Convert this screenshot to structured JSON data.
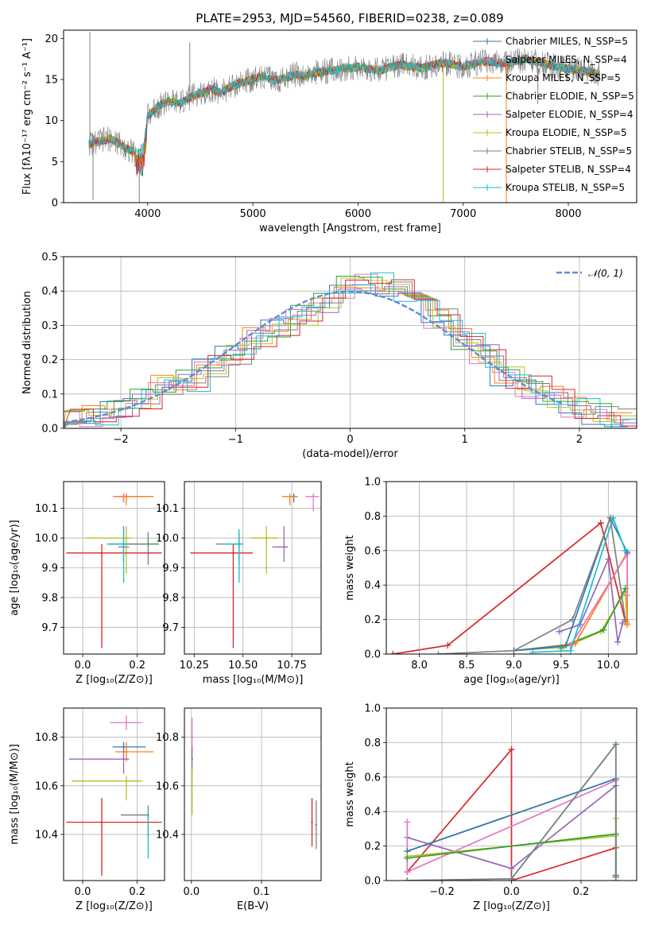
{
  "figure_title": "PLATE=2953, MJD=54560, FIBERID=0238, z=0.089",
  "colors": {
    "Chabrier MILES": "#2b7bba",
    "Salpeter MILES": "#e377c2",
    "Kroupa MILES": "#ff7f0e",
    "Chabrier ELODIE": "#2ca02c",
    "Salpeter ELODIE": "#9467bd",
    "Kroupa ELODIE": "#bcbd22",
    "Chabrier STELIB": "#7f7f7f",
    "Salpeter STELIB": "#d62728",
    "Kroupa STELIB": "#17becf"
  },
  "chart_data": [
    {
      "id": "spectrum",
      "type": "line",
      "title": "PLATE=2953, MJD=54560, FIBERID=0238, z=0.089",
      "xlabel": "wavelength [Angstrom, rest frame]",
      "ylabel": "Flux [fλ10⁻¹⁷ erg cm⁻² s⁻¹ A⁻¹]",
      "xlim": [
        3200,
        8650
      ],
      "ylim": [
        0,
        21
      ],
      "xticks": [
        "4000",
        "5000",
        "6000",
        "7000",
        "8000"
      ],
      "yticks": [
        "0",
        "5",
        "10",
        "15",
        "20"
      ],
      "grid": false,
      "legend_position": "right",
      "legend": [
        "Chabrier MILES, N_SSP=5",
        "Salpeter MILES, N_SSP=4",
        "Kroupa MILES, N_SSP=5",
        "Chabrier ELODIE, N_SSP=5",
        "Salpeter ELODIE, N_SSP=4",
        "Kroupa ELODIE, N_SSP=5",
        "Chabrier STELIB, N_SSP=5",
        "Salpeter STELIB, N_SSP=4",
        "Kroupa STELIB, N_SSP=5"
      ],
      "continuum": {
        "x": [
          3450,
          3550,
          3650,
          3750,
          3850,
          3950,
          4000,
          4100,
          4200,
          4300,
          4400,
          4500,
          4600,
          4700,
          4800,
          4900,
          5000,
          5100,
          5200,
          5300,
          5400,
          5500,
          5600,
          5800,
          6000,
          6200,
          6400,
          6600,
          6800,
          7000,
          7200,
          7400,
          7600,
          7800,
          8000,
          8200,
          8300
        ],
        "y": [
          7.2,
          7.5,
          7.8,
          7.0,
          6.2,
          6.0,
          10.5,
          11.8,
          12.4,
          12.0,
          12.8,
          13.3,
          13.8,
          13.4,
          14.2,
          14.6,
          15.1,
          15.4,
          14.8,
          15.2,
          15.6,
          15.4,
          15.9,
          16.2,
          16.5,
          16.1,
          16.8,
          16.4,
          17.0,
          16.6,
          17.2,
          17.0,
          17.5,
          16.8,
          16.3,
          15.9,
          15.6
        ]
      },
      "spikes": [
        {
          "x": 3450,
          "y": 20.8
        },
        {
          "x": 4400,
          "y": 19.5
        },
        {
          "x": 5180,
          "y": 16.0
        },
        {
          "x": 6810,
          "y": 0.0
        },
        {
          "x": 7410,
          "y": 0.0
        },
        {
          "x": 3920,
          "y": 0.0
        },
        {
          "x": 3480,
          "y": 0.3
        },
        {
          "x": 7710,
          "y": 12.0
        }
      ]
    },
    {
      "id": "residuals",
      "type": "line",
      "xlabel": "(data-model)/error",
      "ylabel": "Normed distribution",
      "xlim": [
        -2.5,
        2.5
      ],
      "ylim": [
        0,
        0.5
      ],
      "xticks": [
        "−2",
        "−1",
        "0",
        "1",
        "2"
      ],
      "yticks": [
        "0.0",
        "0.1",
        "0.2",
        "0.3",
        "0.4",
        "0.5"
      ],
      "grid": true,
      "legend": [
        "𝒩(0, 1)"
      ],
      "legend_position": "top-right",
      "gaussian": {
        "mean": 0,
        "sigma": 1,
        "x_range": [
          -2.5,
          1.9
        ]
      },
      "bin_edges": [
        -2.5,
        -2.3,
        -2.1,
        -1.9,
        -1.7,
        -1.5,
        -1.3,
        -1.1,
        -0.9,
        -0.7,
        -0.5,
        -0.3,
        -0.1,
        0.1,
        0.3,
        0.5,
        0.7,
        0.9,
        1.1,
        1.3,
        1.5,
        1.7,
        1.9,
        2.1,
        2.3,
        2.5
      ],
      "base_heights": [
        0.03,
        0.04,
        0.05,
        0.09,
        0.12,
        0.14,
        0.18,
        0.21,
        0.26,
        0.3,
        0.33,
        0.37,
        0.41,
        0.42,
        0.4,
        0.37,
        0.32,
        0.26,
        0.21,
        0.15,
        0.12,
        0.09,
        0.06,
        0.04,
        0.03
      ]
    },
    {
      "id": "age-vs-Z",
      "type": "scatter",
      "xlabel": "Z [log₁₀(Z/Z⊙)]",
      "ylabel": "age  [log₁₀(age/yr)]",
      "xlim": [
        -0.07,
        0.3
      ],
      "ylim": [
        9.61,
        10.19
      ],
      "xticks": [
        "0.0",
        "0.2"
      ],
      "yticks": [
        "9.7",
        "9.8",
        "9.9",
        "10.0",
        "10.1"
      ],
      "grid": true,
      "points": [
        {
          "model": "Chabrier MILES",
          "x": 0.15,
          "xerr": [
            0.02,
            0.06
          ],
          "y": 10.14,
          "yerr": [
            0.02,
            0.01
          ]
        },
        {
          "model": "Salpeter MILES",
          "x": 0.15,
          "xerr": [
            0.04,
            0.08
          ],
          "y": 10.14,
          "yerr": [
            0.02,
            0.01
          ]
        },
        {
          "model": "Kroupa MILES",
          "x": 0.16,
          "xerr": [
            0.04,
            0.1
          ],
          "y": 10.14,
          "yerr": [
            0.03,
            0.01
          ]
        },
        {
          "model": "Chabrier ELODIE",
          "x": 0.24,
          "xerr": [
            0.14,
            0.04
          ],
          "y": 9.98,
          "yerr": [
            0.01,
            0.02
          ]
        },
        {
          "model": "Salpeter ELODIE",
          "x": 0.15,
          "xerr": [
            0.02,
            0.02
          ],
          "y": 9.97,
          "yerr": [
            0.05,
            0.07
          ]
        },
        {
          "model": "Kroupa ELODIE",
          "x": 0.16,
          "xerr": [
            0.15,
            0.02
          ],
          "y": 10.0,
          "yerr": [
            0.12,
            0.04
          ]
        },
        {
          "model": "Chabrier STELIB",
          "x": 0.24,
          "xerr": [
            0.15,
            0.0
          ],
          "y": 9.98,
          "yerr": [
            0.07,
            0.04
          ]
        },
        {
          "model": "Salpeter STELIB",
          "x": 0.07,
          "xerr": [
            0.13,
            0.22
          ],
          "y": 9.95,
          "yerr": [
            0.32,
            0.03
          ]
        },
        {
          "model": "Kroupa STELIB",
          "x": 0.15,
          "xerr": [
            0.06,
            0.02
          ],
          "y": 9.98,
          "yerr": [
            0.13,
            0.05
          ]
        }
      ]
    },
    {
      "id": "age-vs-mass",
      "type": "scatter",
      "xlabel": "mass [log₁₀(M/M⊙)]",
      "xlim": [
        10.2,
        10.9
      ],
      "ylim": [
        9.61,
        10.19
      ],
      "xticks": [
        "10.25",
        "10.50",
        "10.75"
      ],
      "yticks": [
        "9.7",
        "9.8",
        "9.9",
        "10.0",
        "10.1"
      ],
      "grid": true,
      "points": [
        {
          "model": "Chabrier MILES",
          "x": 10.76,
          "xerr": [
            0.02,
            0.02
          ],
          "y": 10.14,
          "yerr": [
            0.02,
            0.01
          ]
        },
        {
          "model": "Salpeter MILES",
          "x": 10.86,
          "xerr": [
            0.04,
            0.03
          ],
          "y": 10.14,
          "yerr": [
            0.05,
            0.01
          ]
        },
        {
          "model": "Kroupa MILES",
          "x": 10.74,
          "xerr": [
            0.04,
            0.04
          ],
          "y": 10.14,
          "yerr": [
            0.03,
            0.01
          ]
        },
        {
          "model": "Chabrier ELODIE",
          "x": 10.48,
          "xerr": [
            0.02,
            0.02
          ],
          "y": 9.98,
          "yerr": [
            0.01,
            0.02
          ]
        },
        {
          "model": "Salpeter ELODIE",
          "x": 10.71,
          "xerr": [
            0.06,
            0.02
          ],
          "y": 9.97,
          "yerr": [
            0.05,
            0.07
          ]
        },
        {
          "model": "Kroupa ELODIE",
          "x": 10.62,
          "xerr": [
            0.08,
            0.06
          ],
          "y": 10.0,
          "yerr": [
            0.12,
            0.04
          ]
        },
        {
          "model": "Chabrier STELIB",
          "x": 10.48,
          "xerr": [
            0.12,
            0.0
          ],
          "y": 9.98,
          "yerr": [
            0.07,
            0.04
          ]
        },
        {
          "model": "Salpeter STELIB",
          "x": 10.45,
          "xerr": [
            0.22,
            0.1
          ],
          "y": 9.95,
          "yerr": [
            0.32,
            0.03
          ]
        },
        {
          "model": "Kroupa STELIB",
          "x": 10.48,
          "xerr": [
            0.07,
            0.02
          ],
          "y": 9.98,
          "yerr": [
            0.13,
            0.05
          ]
        }
      ]
    },
    {
      "id": "mass-weight-vs-age",
      "type": "line",
      "xlabel": "age  [log₁₀(age/yr)]",
      "ylabel": "mass weight",
      "xlim": [
        7.65,
        10.3
      ],
      "ylim": [
        0,
        1
      ],
      "xticks": [
        "8.0",
        "8.5",
        "9.0",
        "9.5",
        "10.0"
      ],
      "yticks": [
        "0.0",
        "0.2",
        "0.4",
        "0.6",
        "0.8",
        "1.0"
      ],
      "grid": true,
      "series": [
        {
          "model": "Salpeter STELIB",
          "x": [
            7.72,
            8.3,
            9.92,
            10.18
          ],
          "y": [
            0.0,
            0.05,
            0.76,
            0.19
          ]
        },
        {
          "model": "Salpeter ELODIE",
          "x": [
            9.48,
            9.7,
            10.0,
            10.1,
            10.15
          ],
          "y": [
            0.13,
            0.17,
            0.55,
            0.07,
            0.18
          ]
        },
        {
          "model": "Kroupa ELODIE",
          "x": [
            9.5,
            9.92,
            10.18,
            10.2
          ],
          "y": [
            0.03,
            0.13,
            0.36,
            0.18
          ]
        },
        {
          "model": "Chabrier ELODIE",
          "x": [
            9.0,
            9.5,
            9.95,
            10.18
          ],
          "y": [
            0.02,
            0.04,
            0.14,
            0.38
          ]
        },
        {
          "model": "Kroupa MILES",
          "x": [
            9.0,
            9.65,
            10.2,
            10.2
          ],
          "y": [
            0.02,
            0.06,
            0.59,
            0.17
          ]
        },
        {
          "model": "Salpeter MILES",
          "x": [
            9.0,
            9.6,
            10.2,
            10.2
          ],
          "y": [
            0.02,
            0.05,
            0.58,
            0.34
          ]
        },
        {
          "model": "Chabrier MILES",
          "x": [
            9.0,
            9.55,
            10.02,
            10.2
          ],
          "y": [
            0.02,
            0.05,
            0.79,
            0.59
          ]
        },
        {
          "model": "Kroupa STELIB",
          "x": [
            9.2,
            9.6,
            10.05,
            10.18
          ],
          "y": [
            0.01,
            0.02,
            0.79,
            0.6
          ]
        },
        {
          "model": "Chabrier STELIB",
          "x": [
            8.2,
            9.0,
            9.62,
            10.02,
            10.18
          ],
          "y": [
            0.0,
            0.02,
            0.2,
            0.79,
            0.2
          ]
        }
      ]
    },
    {
      "id": "mass-vs-Z",
      "type": "scatter",
      "xlabel": "Z [log₁₀(Z/Z⊙)]",
      "ylabel": "mass [log₁₀(M/M⊙)]",
      "xlim": [
        -0.07,
        0.3
      ],
      "ylim": [
        10.21,
        10.92
      ],
      "xticks": [
        "0.0",
        "0.2"
      ],
      "yticks": [
        "10.4",
        "10.6",
        "10.8"
      ],
      "grid": true,
      "points": [
        {
          "model": "Chabrier MILES",
          "x": 0.15,
          "xerr": [
            0.04,
            0.08
          ],
          "y": 10.76,
          "yerr": [
            0.02,
            0.02
          ]
        },
        {
          "model": "Salpeter MILES",
          "x": 0.16,
          "xerr": [
            0.06,
            0.06
          ],
          "y": 10.86,
          "yerr": [
            0.03,
            0.03
          ]
        },
        {
          "model": "Kroupa MILES",
          "x": 0.16,
          "xerr": [
            0.04,
            0.1
          ],
          "y": 10.74,
          "yerr": [
            0.04,
            0.04
          ]
        },
        {
          "model": "Chabrier ELODIE",
          "x": 0.24,
          "xerr": [
            0.1,
            0.0
          ],
          "y": 10.48,
          "yerr": [
            0.02,
            0.02
          ]
        },
        {
          "model": "Salpeter ELODIE",
          "x": 0.15,
          "xerr": [
            0.2,
            0.02
          ],
          "y": 10.71,
          "yerr": [
            0.06,
            0.05
          ]
        },
        {
          "model": "Kroupa ELODIE",
          "x": 0.16,
          "xerr": [
            0.2,
            0.06
          ],
          "y": 10.62,
          "yerr": [
            0.08,
            0.02
          ]
        },
        {
          "model": "Chabrier STELIB",
          "x": 0.24,
          "xerr": [
            0.1,
            0.0
          ],
          "y": 10.48,
          "yerr": [
            0.1,
            0.04
          ]
        },
        {
          "model": "Salpeter STELIB",
          "x": 0.07,
          "xerr": [
            0.13,
            0.22
          ],
          "y": 10.45,
          "yerr": [
            0.22,
            0.1
          ]
        },
        {
          "model": "Kroupa STELIB",
          "x": 0.24,
          "xerr": [
            0.0,
            0.0
          ],
          "y": 10.4,
          "yerr": [
            0.1,
            0.1
          ]
        }
      ]
    },
    {
      "id": "mass-vs-ebv",
      "type": "scatter",
      "xlabel": "E(B-V)",
      "xlim": [
        -0.01,
        0.185
      ],
      "ylim": [
        10.21,
        10.92
      ],
      "xticks": [
        "0.0",
        "0.1"
      ],
      "yticks": [
        "10.4",
        "10.6",
        "10.8"
      ],
      "grid": true,
      "points": [
        {
          "model": "Salpeter MILES",
          "x": 0.001,
          "y": 10.8,
          "yerr": [
            0.06,
            0.08
          ]
        },
        {
          "model": "Salpeter ELODIE",
          "x": 0.001,
          "y": 10.71,
          "yerr": [
            0.06,
            0.05
          ]
        },
        {
          "model": "Kroupa ELODIE",
          "x": 0.001,
          "y": 10.6,
          "yerr": [
            0.12,
            0.08
          ]
        },
        {
          "model": "Salpeter STELIB",
          "x": 0.172,
          "y": 10.45,
          "yerr": [
            0.1,
            0.1
          ]
        },
        {
          "model": "Chabrier STELIB",
          "x": 0.178,
          "y": 10.44,
          "yerr": [
            0.1,
            0.1
          ]
        }
      ]
    },
    {
      "id": "mass-weight-vs-Z",
      "type": "line",
      "xlabel": "Z [log₁₀(Z/Z⊙)]",
      "ylabel": "mass weight",
      "xlim": [
        -0.36,
        0.36
      ],
      "ylim": [
        0,
        1
      ],
      "xticks": [
        "−0.2",
        "0.0",
        "0.2"
      ],
      "yticks": [
        "0.0",
        "0.2",
        "0.4",
        "0.6",
        "0.8",
        "1.0"
      ],
      "grid": true,
      "series": [
        {
          "model": "Salpeter STELIB",
          "x": [
            -0.3,
            0.0,
            0.0,
            0.3,
            0.3
          ],
          "y": [
            0.05,
            0.76,
            0.0,
            0.19,
            0.0
          ]
        },
        {
          "model": "Salpeter ELODIE",
          "x": [
            -0.3,
            0.0,
            0.3
          ],
          "y": [
            0.25,
            0.07,
            0.55
          ]
        },
        {
          "model": "Salpeter MILES",
          "x": [
            -0.3,
            -0.3,
            0.3,
            0.3
          ],
          "y": [
            0.34,
            0.05,
            0.58,
            0.03
          ]
        },
        {
          "model": "Kroupa MILES",
          "x": [
            -0.3,
            0.3,
            0.3
          ],
          "y": [
            0.17,
            0.59,
            0.03
          ]
        },
        {
          "model": "Chabrier MILES",
          "x": [
            -0.3,
            0.3,
            0.3
          ],
          "y": [
            0.17,
            0.59,
            0.03
          ]
        },
        {
          "model": "Kroupa ELODIE",
          "x": [
            -0.3,
            0.3,
            0.3
          ],
          "y": [
            0.14,
            0.26,
            0.36
          ]
        },
        {
          "model": "Chabrier ELODIE",
          "x": [
            -0.3,
            0.3,
            0.3
          ],
          "y": [
            0.13,
            0.27,
            0.02
          ]
        },
        {
          "model": "Kroupa STELIB",
          "x": [
            -0.3,
            0.0,
            0.3,
            0.3
          ],
          "y": [
            0.0,
            0.01,
            0.79,
            0.02
          ]
        },
        {
          "model": "Chabrier STELIB",
          "x": [
            -0.3,
            0.0,
            0.3,
            0.3
          ],
          "y": [
            0.0,
            0.01,
            0.79,
            0.02
          ]
        }
      ]
    }
  ]
}
